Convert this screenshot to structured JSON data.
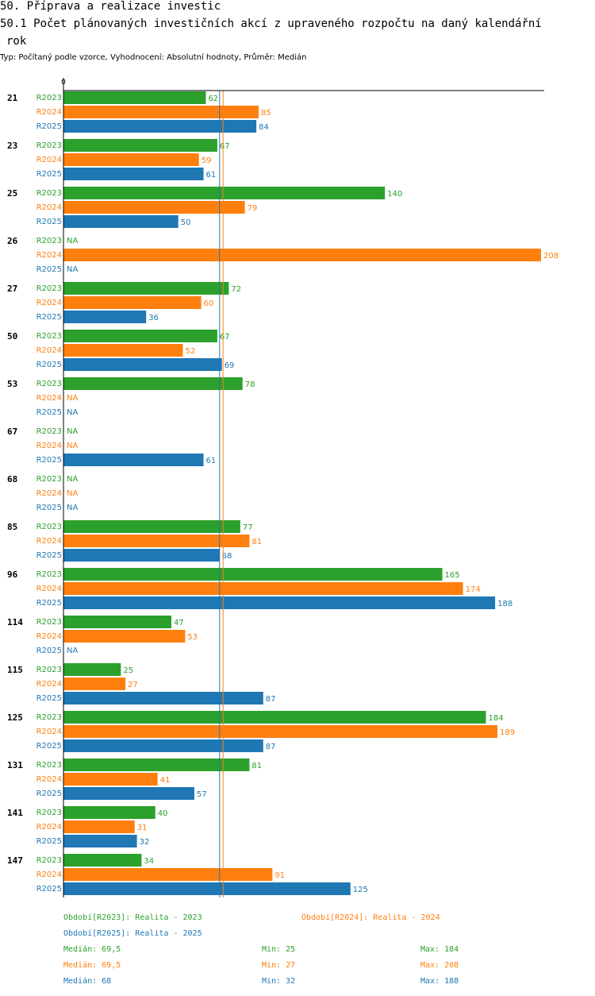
{
  "header": {
    "title": "50. Příprava a realizace investic",
    "subtitle_line1": "50.1 Počet plánovaných investičních akcí z upraveného rozpočtu na daný kalendářní",
    "subtitle_line2": "rok",
    "meta": "Typ: Počítaný podle vzorce, Vyhodnocení: Absolutní hodnoty, Průměr: Medián"
  },
  "colors": {
    "R2023": "#2ca02c",
    "R2024": "#ff7f0e",
    "R2025": "#1f77b4"
  },
  "chart_data": {
    "type": "bar",
    "orientation": "horizontal",
    "axis_zero_label": "0",
    "xlim": [
      0,
      208
    ],
    "na_label": "NA",
    "categories": [
      "21",
      "23",
      "25",
      "26",
      "27",
      "50",
      "53",
      "67",
      "68",
      "85",
      "96",
      "114",
      "115",
      "125",
      "131",
      "141",
      "147"
    ],
    "series": [
      {
        "name": "R2023",
        "values": [
          62,
          67,
          140,
          null,
          72,
          67,
          78,
          null,
          null,
          77,
          165,
          47,
          25,
          184,
          81,
          40,
          34
        ]
      },
      {
        "name": "R2024",
        "values": [
          85,
          59,
          79,
          208,
          60,
          52,
          null,
          null,
          null,
          81,
          174,
          53,
          27,
          189,
          41,
          31,
          91
        ]
      },
      {
        "name": "R2025",
        "values": [
          84,
          61,
          50,
          null,
          36,
          69,
          null,
          61,
          null,
          68,
          188,
          null,
          87,
          87,
          57,
          32,
          125
        ]
      }
    ],
    "median_lines": [
      {
        "series": "R2024",
        "value": 69.5
      },
      {
        "series": "R2025",
        "value": 68
      }
    ]
  },
  "legend": {
    "items": [
      {
        "series": "R2023",
        "label": "Období[R2023]: Realita - 2023"
      },
      {
        "series": "R2024",
        "label": "Období[R2024]: Realita - 2024"
      },
      {
        "series": "R2025",
        "label": "Období[R2025]: Realita - 2025"
      }
    ],
    "stats": [
      {
        "series": "R2023",
        "median": "Medián: 69,5",
        "min": "Min: 25",
        "max": "Max: 184"
      },
      {
        "series": "R2024",
        "median": "Medián: 69,5",
        "min": "Min: 27",
        "max": "Max: 208"
      },
      {
        "series": "R2025",
        "median": "Medián: 68",
        "min": "Min: 32",
        "max": "Max: 188"
      }
    ]
  }
}
